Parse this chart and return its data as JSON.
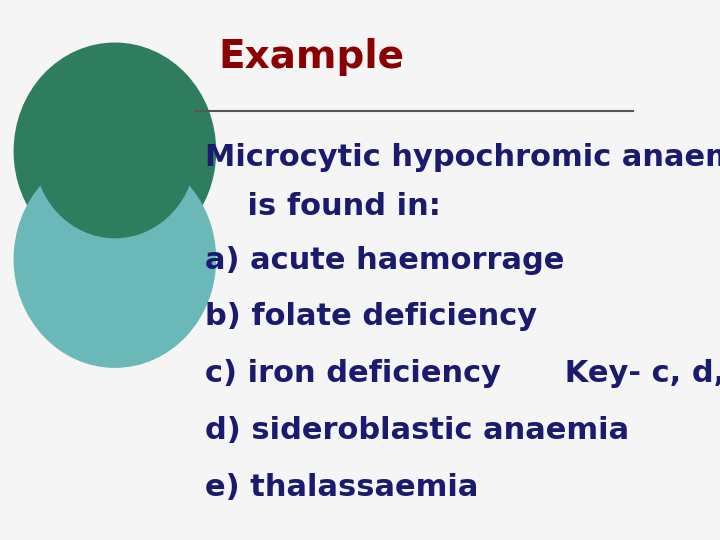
{
  "title": "Example",
  "title_color": "#8B0000",
  "title_fontsize": 28,
  "line_color": "#555555",
  "body_color": "#1a1a6e",
  "body_fontsize": 22,
  "question_line1": "Microcytic hypochromic anaemia",
  "question_line2": "    is found in:",
  "options": [
    {
      "label": "a)",
      "text": "acute haemorrage"
    },
    {
      "label": "b)",
      "text": "folate deficiency"
    },
    {
      "label": "c)",
      "text": "iron deficiency      Key- c, d, e"
    },
    {
      "label": "d)",
      "text": "sideroblastic anaemia"
    },
    {
      "label": "e)",
      "text": "thalassaemia"
    }
  ],
  "background_color": "#f5f5f5",
  "circle_color1": "#2e7d5e",
  "circle_color2": "#6ab8b8"
}
